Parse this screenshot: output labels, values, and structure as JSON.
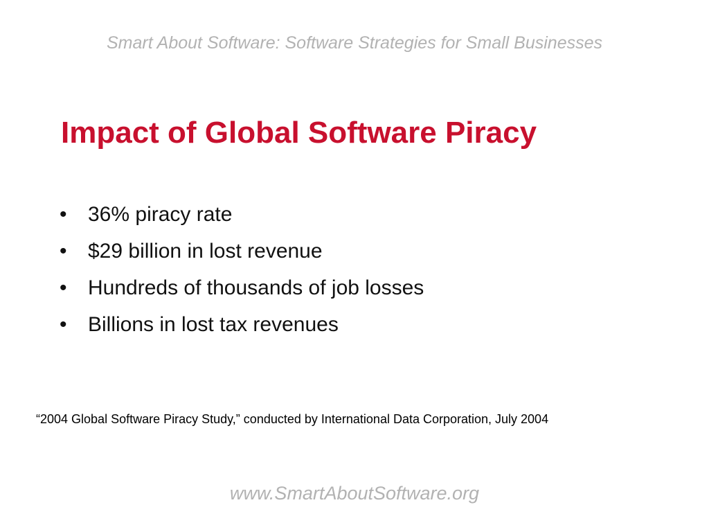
{
  "header": {
    "tagline": "Smart About Software: Software Strategies for Small Businesses"
  },
  "slide": {
    "title": "Impact of Global Software Piracy",
    "bullet_symbol": "•",
    "bullets": [
      "36% piracy rate",
      "$29 billion in lost revenue",
      "Hundreds of thousands of job losses",
      "Billions in lost tax revenues"
    ],
    "citation": "“2004 Global Software Piracy Study,” conducted by International Data Corporation, July 2004"
  },
  "footer": {
    "url": "www.SmartAboutSoftware.org"
  },
  "colors": {
    "title": "#c8102e",
    "header_footer": "#b2b2b2",
    "body_text": "#111111",
    "background": "#ffffff"
  }
}
